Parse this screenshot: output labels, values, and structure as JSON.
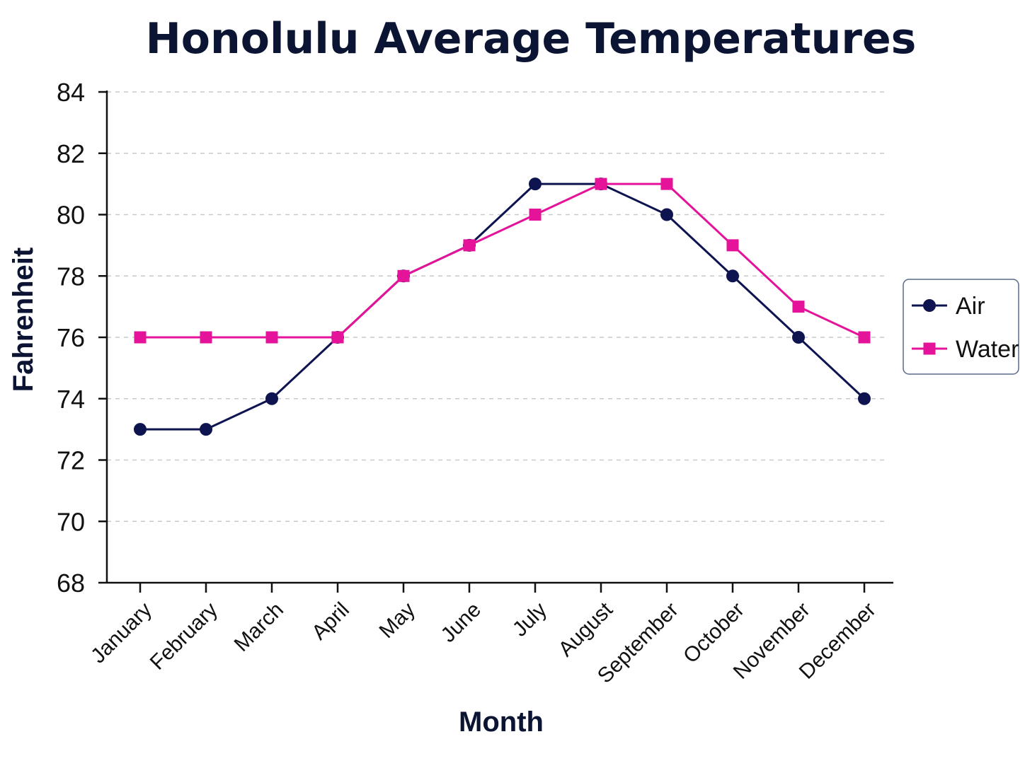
{
  "chart_data": {
    "type": "line",
    "title": "Honolulu Average Temperatures",
    "xlabel": "Month",
    "ylabel": "Fahrenheit",
    "categories": [
      "January",
      "February",
      "March",
      "April",
      "May",
      "June",
      "July",
      "August",
      "September",
      "October",
      "November",
      "December"
    ],
    "ylim": [
      68,
      84
    ],
    "yticks": [
      68,
      70,
      72,
      74,
      76,
      78,
      80,
      82,
      84
    ],
    "grid": "horizontal-dashed",
    "legend_position": "right",
    "series": [
      {
        "name": "Air",
        "marker": "circle",
        "color": "#0e1450",
        "values": [
          73,
          73,
          74,
          76,
          78,
          79,
          81,
          81,
          80,
          78,
          76,
          74
        ]
      },
      {
        "name": "Water",
        "marker": "square",
        "color": "#e5129a",
        "values": [
          76,
          76,
          76,
          76,
          78,
          79,
          80,
          81,
          81,
          79,
          77,
          76
        ]
      }
    ]
  }
}
